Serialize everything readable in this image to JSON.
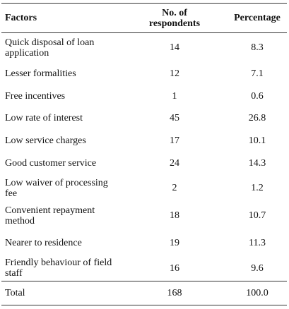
{
  "table": {
    "header": [
      "Factors",
      "No. of respondents",
      "Percentage"
    ],
    "rows": [
      [
        "Quick disposal of loan application",
        14,
        8.3
      ],
      [
        "Lesser formalities",
        12,
        7.1
      ],
      [
        "Free incentives",
        1,
        0.6
      ],
      [
        "Low rate of interest",
        45,
        26.8
      ],
      [
        "Low service charges",
        17,
        10.1
      ],
      [
        "Good customer service",
        24,
        14.3
      ],
      [
        "Low waiver of processing fee",
        2,
        1.2
      ],
      [
        "Convenient repayment method",
        18,
        10.7
      ],
      [
        "Nearer to residence",
        19,
        11.3
      ],
      [
        "Friendly behaviour of field staff",
        16,
        9.6
      ]
    ],
    "total": [
      "Total",
      168,
      "100.0"
    ]
  }
}
